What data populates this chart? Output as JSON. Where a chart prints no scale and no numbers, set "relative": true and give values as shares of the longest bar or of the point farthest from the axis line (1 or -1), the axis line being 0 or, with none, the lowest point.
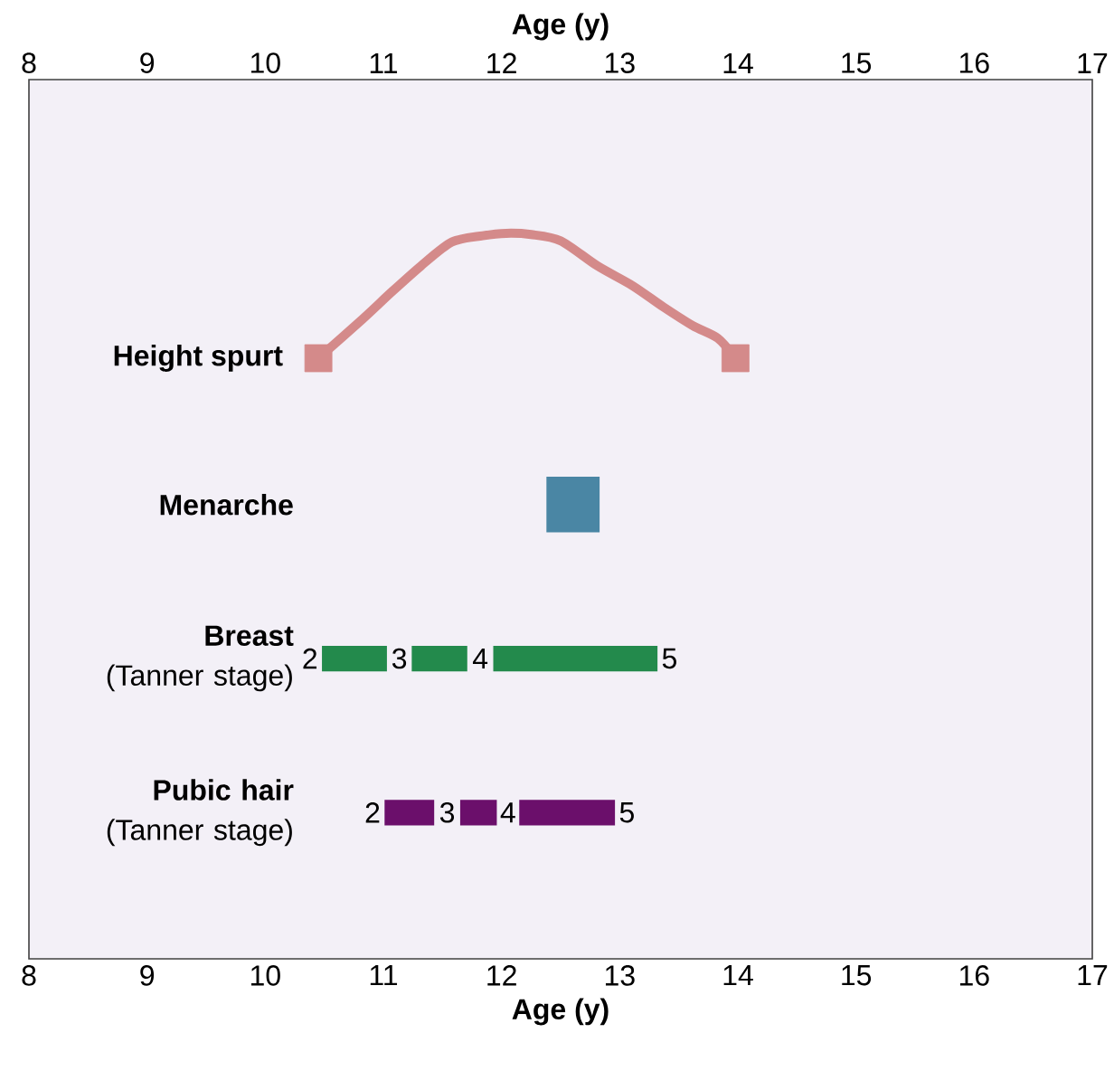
{
  "chart_data": [
    {
      "type": "line",
      "relative": true,
      "xlabel": "Age (y)",
      "xlim": [
        8,
        17
      ],
      "xticks": [
        8,
        9,
        10,
        11,
        12,
        13,
        14,
        15,
        16,
        17
      ],
      "series": [
        {
          "name": "Height spurt",
          "color": "#d48a8a",
          "x": [
            10.45,
            10.82,
            11.07,
            11.32,
            11.58,
            11.84,
            12.04,
            12.25,
            12.5,
            12.81,
            13.11,
            13.37,
            13.62,
            13.83,
            13.98
          ],
          "values": [
            0,
            0.31,
            0.53,
            0.74,
            0.93,
            0.98,
            1,
            0.99,
            0.94,
            0.74,
            0.58,
            0.41,
            0.26,
            0.16,
            0
          ]
        },
        {
          "type": "scatter",
          "marker": "square",
          "color": "#d48a8a",
          "x": [
            10.45,
            13.98
          ],
          "values": [
            0,
            0
          ]
        }
      ]
    },
    {
      "type": "bar",
      "orientation": "horizontal",
      "xlabel": "Age (y)",
      "xlim": [
        8,
        17
      ],
      "xticks": [
        8,
        9,
        10,
        11,
        12,
        13,
        14,
        15,
        16,
        17
      ],
      "categories": [
        "Menarche",
        "**Breast** (Tanner stage)",
        "**Pubic hair** (Tanner stage)"
      ],
      "series": [
        {
          "colors": [
            "#4a86a4",
            "#238a4c",
            "#6b0f6b"
          ],
          "values": [
            0.45,
            0.55,
            0.42
          ],
          "base": [
            12.38,
            10.48,
            11.01
          ]
        },
        {
          "colors": [
            null,
            "#238a4c",
            "#6b0f6b"
          ],
          "values": [
            null,
            0.47,
            0.31
          ],
          "base": [
            null,
            11.24,
            11.65
          ]
        },
        {
          "colors": [
            null,
            "#238a4c",
            "#6b0f6b"
          ],
          "values": [
            null,
            1.39,
            0.81
          ],
          "base": [
            null,
            11.93,
            12.15
          ]
        }
      ],
      "annotations": [
        "2",
        "3",
        "4",
        "5",
        "2",
        "3",
        "4",
        "5"
      ]
    }
  ]
}
